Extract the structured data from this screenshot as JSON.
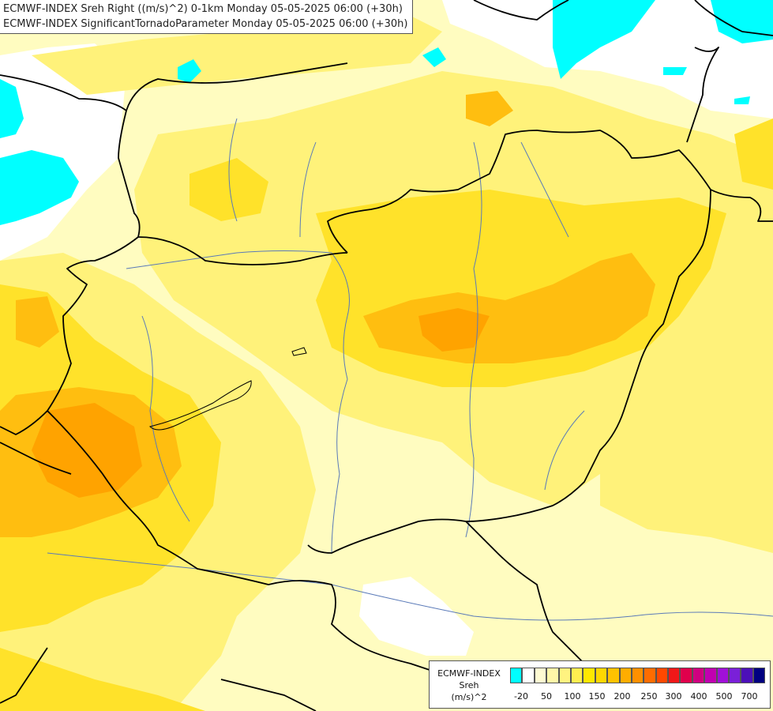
{
  "titles": {
    "line1": "ECMWF-INDEX Sreh Right ((m/s)^2) 0-1km Monday 05-05-2025 06:00 (+30h)",
    "line2": "ECMWF-INDEX SignificantTornadoParameter Monday 05-05-2025 06:00 (+30h)"
  },
  "legend": {
    "line1": "ECMWF-INDEX",
    "line2": "Sreh",
    "line3": "(m/s)^2",
    "colors": [
      "#00ffff",
      "#ffffff",
      "#fffbd2",
      "#fff7a8",
      "#fff380",
      "#ffee50",
      "#ffe800",
      "#ffd700",
      "#ffc200",
      "#ffad00",
      "#ff9000",
      "#ff6c00",
      "#ff4800",
      "#f01818",
      "#e0004c",
      "#d00080",
      "#c000b0",
      "#a010d8",
      "#7a20d8",
      "#4c10b8",
      "#000080"
    ],
    "ticks": [
      "-20",
      "50",
      "100",
      "150",
      "200",
      "250",
      "300",
      "400",
      "500",
      "700"
    ]
  },
  "colors": {
    "cyan": "#00ffff",
    "light_yellow": "#fffcc0",
    "yellow": "#fff27a",
    "strong_yellow": "#ffe22a",
    "orange": "#ffb200",
    "dark_orange": "#ff9800"
  }
}
